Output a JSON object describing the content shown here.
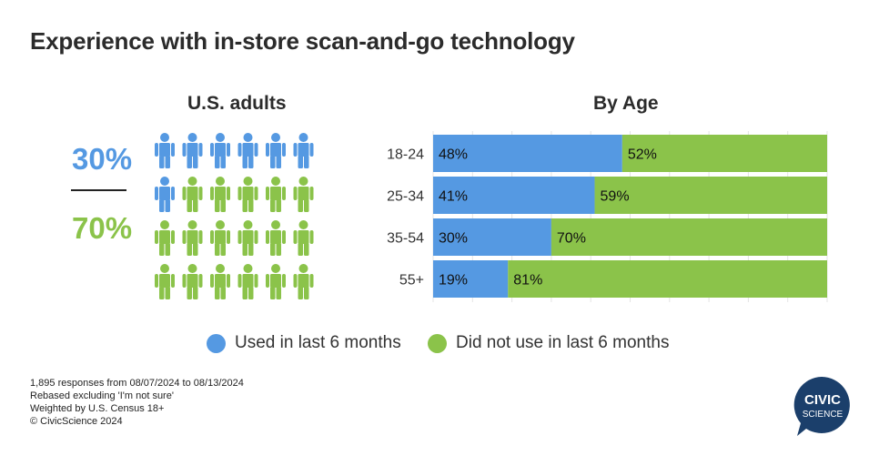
{
  "title": "Experience with in-store scan-and-go technology",
  "colors": {
    "used": "#5599e2",
    "not_used": "#8bc34a",
    "logo": "#1b3f6b"
  },
  "us_adults": {
    "heading": "U.S. adults",
    "used_pct": "30%",
    "not_used_pct": "70%",
    "icons_total": 24,
    "icons_used": 7
  },
  "chart_data": {
    "type": "bar",
    "orientation": "horizontal",
    "stacked": true,
    "title": "By Age",
    "categories": [
      "18-24",
      "25-34",
      "35-54",
      "55+"
    ],
    "series": [
      {
        "name": "Used in last 6 months",
        "values": [
          48,
          41,
          30,
          19
        ]
      },
      {
        "name": "Did not use in last 6 months",
        "values": [
          52,
          59,
          70,
          81
        ]
      }
    ],
    "xlim": [
      0,
      100
    ],
    "data_label_suffix": "%"
  },
  "legend": {
    "used": "Used in last 6 months",
    "not_used": "Did not use in last 6 months"
  },
  "footnotes": [
    "1,895 responses from 08/07/2024 to 08/13/2024",
    "Rebased excluding 'I'm not sure'",
    "Weighted by U.S. Census 18+",
    "© CivicScience 2024"
  ],
  "logo": {
    "line1": "CIVIC",
    "line2": "SCIENCE"
  }
}
